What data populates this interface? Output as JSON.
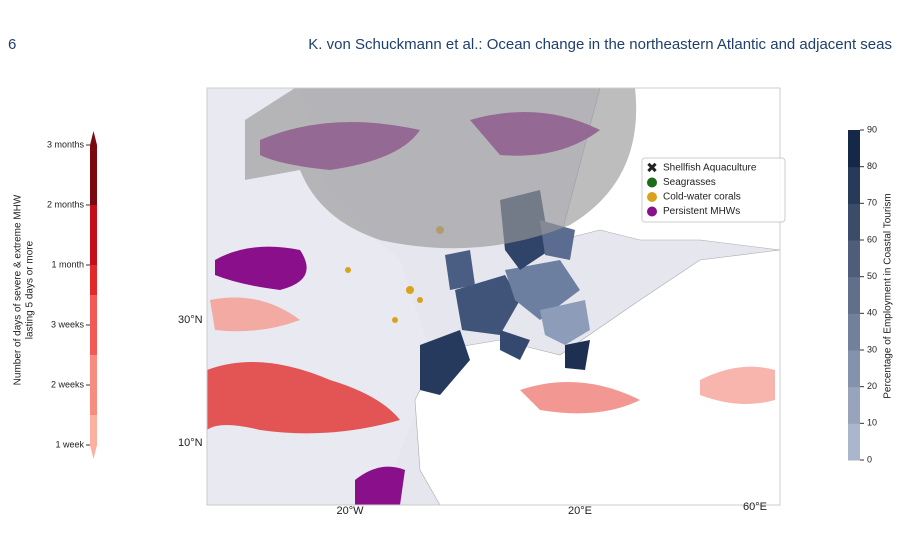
{
  "header": {
    "page_number": "6",
    "title": "K. von Schuckmann et al.: Ocean change in the northeastern Atlantic and adjacent seas"
  },
  "figure": {
    "mhw_colorbar": {
      "label_lines": [
        "Number of days of severe & extreme MHW",
        "lasting 5 days or more"
      ],
      "ticks": [
        "1 week",
        "2 weeks",
        "3 weeks",
        "1 month",
        "2 months",
        "3 months"
      ]
    },
    "employment_colorbar": {
      "label": "Percentage of Employment in Coastal Tourism",
      "range": [
        0,
        90
      ],
      "ticks": [
        0,
        10,
        20,
        30,
        40,
        50,
        60,
        70,
        80,
        90
      ]
    },
    "legend": [
      {
        "label": "Shellfish Aquaculture",
        "color": "#111111"
      },
      {
        "label": "Seagrasses",
        "color": "#1b6b1b"
      },
      {
        "label": "Cold-water corals",
        "color": "#d9a21c"
      },
      {
        "label": "Persistent MHWs",
        "color": "#8a0f8a"
      }
    ],
    "lat_labels": [
      "30°N",
      "10°N"
    ],
    "lon_labels": [
      "20°W",
      "20°E",
      "60°E"
    ]
  }
}
